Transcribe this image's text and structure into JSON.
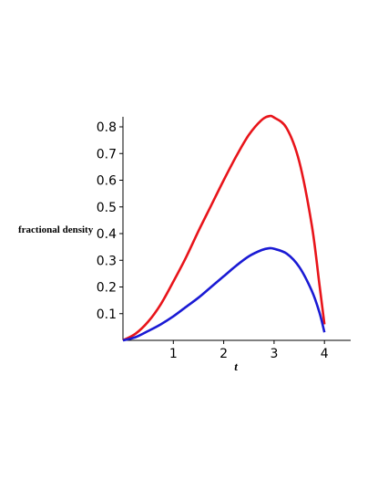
{
  "chart_data": {
    "type": "line",
    "title": "",
    "xlabel": "t",
    "ylabel": "fractional density",
    "xlim": [
      0,
      4.55
    ],
    "ylim": [
      0,
      0.86
    ],
    "xticks": [
      1,
      2,
      3,
      4
    ],
    "yticks": [
      0.1,
      0.2,
      0.3,
      0.4,
      0.5,
      0.6,
      0.7,
      0.8
    ],
    "grid": false,
    "legend": "none",
    "series": [
      {
        "color": "#e8141a",
        "x": [
          0,
          0.25,
          0.5,
          0.75,
          1.0,
          1.25,
          1.5,
          1.75,
          2.0,
          2.25,
          2.5,
          2.75,
          2.9,
          3.0,
          3.25,
          3.5,
          3.75,
          3.9,
          4.0
        ],
        "y": [
          0,
          0.025,
          0.07,
          0.135,
          0.22,
          0.31,
          0.41,
          0.505,
          0.6,
          0.69,
          0.77,
          0.825,
          0.84,
          0.835,
          0.795,
          0.67,
          0.43,
          0.21,
          0.06
        ]
      },
      {
        "color": "#1a1ad4",
        "x": [
          0,
          0.25,
          0.5,
          0.75,
          1.0,
          1.25,
          1.5,
          1.75,
          2.0,
          2.25,
          2.5,
          2.75,
          2.9,
          3.0,
          3.25,
          3.5,
          3.75,
          3.9,
          4.0
        ],
        "y": [
          0,
          0.012,
          0.035,
          0.06,
          0.09,
          0.125,
          0.16,
          0.2,
          0.24,
          0.28,
          0.315,
          0.338,
          0.345,
          0.343,
          0.325,
          0.275,
          0.185,
          0.105,
          0.03
        ]
      }
    ]
  }
}
